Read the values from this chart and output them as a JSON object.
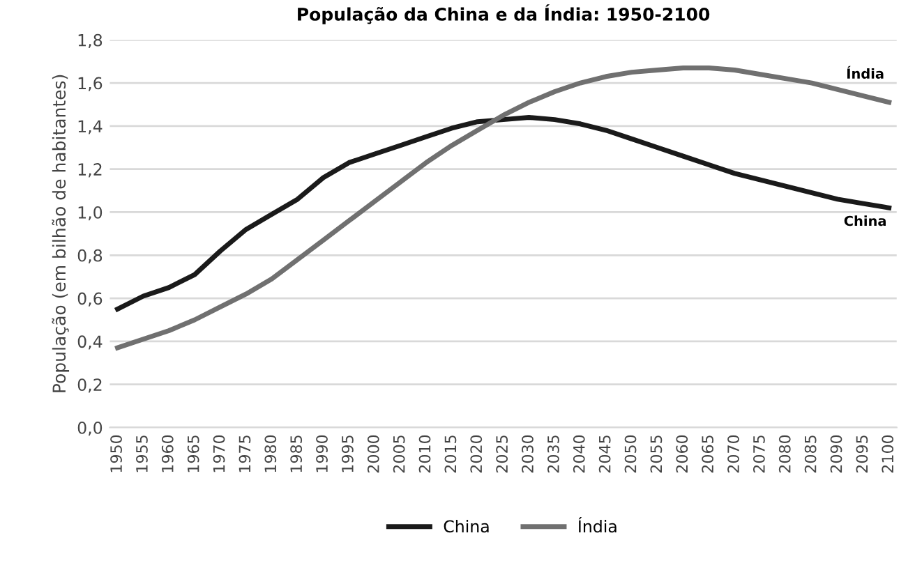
{
  "chart_data": {
    "type": "line",
    "title": "População da China e da Índia: 1950-2100",
    "ylabel": "População (em bilhão de habitantes)",
    "categories": [
      "1950",
      "1955",
      "1960",
      "1965",
      "1970",
      "1975",
      "1980",
      "1985",
      "1990",
      "1995",
      "2000",
      "2005",
      "2010",
      "2015",
      "2020",
      "2025",
      "2030",
      "2035",
      "2040",
      "2045",
      "2050",
      "2055",
      "2060",
      "2065",
      "2070",
      "2075",
      "2080",
      "2085",
      "2090",
      "2095",
      "2100"
    ],
    "series": [
      {
        "name": "China",
        "color": "#1a1a1a",
        "values": [
          0.55,
          0.61,
          0.65,
          0.71,
          0.82,
          0.92,
          0.99,
          1.06,
          1.16,
          1.23,
          1.27,
          1.31,
          1.35,
          1.39,
          1.42,
          1.43,
          1.44,
          1.43,
          1.41,
          1.38,
          1.34,
          1.3,
          1.26,
          1.22,
          1.18,
          1.15,
          1.12,
          1.09,
          1.06,
          1.04,
          1.02
        ]
      },
      {
        "name": "Índia",
        "color": "#707070",
        "values": [
          0.37,
          0.41,
          0.45,
          0.5,
          0.56,
          0.62,
          0.69,
          0.78,
          0.87,
          0.96,
          1.05,
          1.14,
          1.23,
          1.31,
          1.38,
          1.45,
          1.51,
          1.56,
          1.6,
          1.63,
          1.65,
          1.66,
          1.67,
          1.67,
          1.66,
          1.64,
          1.62,
          1.6,
          1.57,
          1.54,
          1.51
        ]
      }
    ],
    "annotations": [
      "Índia",
      "China"
    ],
    "ylim": [
      0,
      1.8
    ],
    "yticks": [
      {
        "value": 0,
        "label": "0,0"
      },
      {
        "value": 0.2,
        "label": "0,2"
      },
      {
        "value": 0.4,
        "label": "0,4"
      },
      {
        "value": 0.6,
        "label": "0,6"
      },
      {
        "value": 0.8,
        "label": "0,8"
      },
      {
        "value": 1.0,
        "label": "1,0"
      },
      {
        "value": 1.2,
        "label": "1,2"
      },
      {
        "value": 1.4,
        "label": "1,4"
      },
      {
        "value": 1.6,
        "label": "1,6"
      },
      {
        "value": 1.8,
        "label": "1,8"
      }
    ],
    "grid": "y",
    "legend": "bottom",
    "marker": "none",
    "line_style": "solid"
  }
}
